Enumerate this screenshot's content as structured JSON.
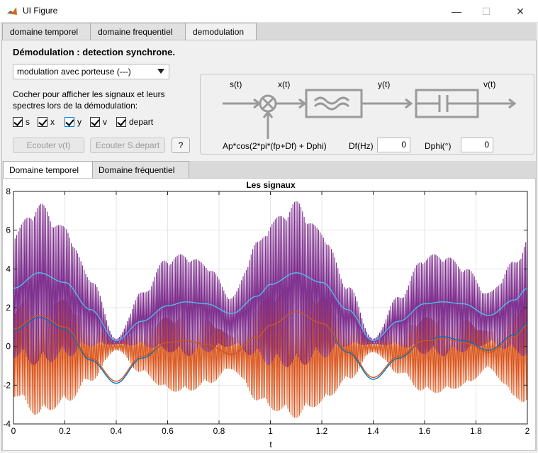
{
  "window": {
    "title": "UI Figure",
    "minimize": "—",
    "maximize": "☐",
    "close": "✕"
  },
  "tabs": [
    {
      "label": "domaine temporel"
    },
    {
      "label": "domaine frequentiel"
    },
    {
      "label": "demodulation",
      "active": true
    }
  ],
  "demod": {
    "heading": "Démodulation : detection synchrone.",
    "dropdown_value": "modulation avec porteuse (---)",
    "help_text": "Cocher pour afficher les signaux et leurs spectres lors de la démodulation:",
    "checkboxes": [
      {
        "label": "s",
        "checked": true
      },
      {
        "label": "x",
        "checked": true
      },
      {
        "label": "y",
        "checked": true
      },
      {
        "label": "v",
        "checked": true
      },
      {
        "label": "depart",
        "checked": true
      }
    ],
    "buttons": {
      "listen_v": "Ecouter v(t)",
      "listen_s": "Ecouter S.depart",
      "help": "?"
    }
  },
  "diagram": {
    "s": "s(t)",
    "x": "x(t)",
    "y": "y(t)",
    "v": "v(t)",
    "carrier": "Ap*cos(2*pi*(fp+Df) + Dphi)",
    "df_label": "Df(Hz)",
    "df_value": "0",
    "dphi_label": "Dphi(°)",
    "dphi_value": "0"
  },
  "subtabs": [
    {
      "label": "Domaine temporel",
      "active": true
    },
    {
      "label": "Domaine fréquentiel"
    }
  ],
  "colors": {
    "purple": "#7E2F8E",
    "orange": "#D95319",
    "cyan": "#4DBEEE",
    "blue": "#0072BD",
    "black": "#000000"
  },
  "chart_data": {
    "type": "line",
    "title": "Les signaux",
    "xlabel": "t",
    "ylabel": "",
    "xlim": [
      0,
      2
    ],
    "ylim": [
      -4,
      8
    ],
    "xticks": [
      "0",
      "0.2",
      "0.4",
      "0.6",
      "0.8",
      "1",
      "1.2",
      "1.4",
      "1.6",
      "1.8",
      "2"
    ],
    "yticks": [
      "-4",
      "-2",
      "0",
      "2",
      "4",
      "6",
      "8"
    ],
    "grid": true,
    "envelope": {
      "x": [
        0,
        0.1,
        0.2,
        0.3,
        0.4,
        0.5,
        0.6,
        0.67,
        0.75,
        0.85,
        0.95,
        1.0,
        1.1,
        1.2,
        1.3,
        1.4,
        1.5,
        1.6,
        1.67,
        1.75,
        1.85,
        1.95,
        2.0
      ],
      "upper": [
        6.0,
        7.4,
        6.2,
        3.6,
        0.4,
        2.8,
        4.6,
        4.8,
        4.3,
        2.6,
        5.4,
        6.5,
        7.5,
        6.0,
        3.2,
        0.4,
        2.6,
        4.7,
        4.8,
        4.2,
        2.8,
        4.4,
        5.6
      ],
      "lower": [
        -0.6,
        -1.0,
        -0.6,
        0.0,
        0.1,
        0.0,
        -0.3,
        -0.5,
        -0.3,
        0.0,
        -0.6,
        -1.0,
        -1.1,
        -0.6,
        0.0,
        0.1,
        0.0,
        -0.4,
        -0.5,
        -0.3,
        0.1,
        -0.3,
        -0.6
      ]
    },
    "orange_env": {
      "x": [
        0,
        0.1,
        0.2,
        0.3,
        0.4,
        0.5,
        0.6,
        0.67,
        0.75,
        0.85,
        0.95,
        1.0,
        1.1,
        1.2,
        1.3,
        1.4,
        1.5,
        1.6,
        1.67,
        1.75,
        1.85,
        1.95,
        2.0
      ],
      "upper": [
        2.0,
        3.0,
        2.4,
        1.2,
        0.2,
        0.9,
        1.5,
        1.6,
        1.4,
        0.6,
        2.2,
        2.8,
        3.2,
        2.6,
        1.3,
        0.2,
        0.9,
        1.5,
        1.6,
        1.4,
        0.8,
        1.9,
        2.4
      ],
      "lower": [
        -2.6,
        -3.6,
        -3.0,
        -1.8,
        -0.2,
        -1.4,
        -2.3,
        -2.4,
        -2.0,
        -1.2,
        -2.8,
        -3.3,
        -3.7,
        -3.0,
        -1.8,
        -0.3,
        -1.4,
        -2.4,
        -2.4,
        -2.1,
        -1.2,
        -2.6,
        -3.2
      ]
    },
    "series": [
      {
        "name": "s",
        "color": "#4DBEEE",
        "x": [
          0,
          0.1,
          0.2,
          0.3,
          0.4,
          0.5,
          0.6,
          0.67,
          0.75,
          0.85,
          0.95,
          1.0,
          1.1,
          1.2,
          1.3,
          1.4,
          1.5,
          1.6,
          1.67,
          1.75,
          1.85,
          1.95,
          2.0
        ],
        "y": [
          3.0,
          3.8,
          3.3,
          1.9,
          0.3,
          1.3,
          2.1,
          2.3,
          2.2,
          1.7,
          2.6,
          3.2,
          3.8,
          3.3,
          1.9,
          0.3,
          1.3,
          2.2,
          2.3,
          2.2,
          1.6,
          2.4,
          3.0
        ]
      },
      {
        "name": "v",
        "color": "#0072BD",
        "x": [
          0,
          0.1,
          0.2,
          0.3,
          0.4,
          0.5,
          0.6,
          0.67,
          0.75,
          0.85,
          0.95,
          1.0,
          1.1,
          1.2,
          1.3,
          1.4,
          1.5,
          1.6,
          1.67,
          1.75,
          1.85,
          1.95,
          2.0
        ],
        "y": [
          0.8,
          1.5,
          0.9,
          -0.7,
          -1.9,
          -0.6,
          0.2,
          0.3,
          0.1,
          -0.4,
          0.5,
          1.1,
          1.8,
          1.2,
          -0.3,
          -1.7,
          -0.6,
          0.3,
          0.5,
          0.3,
          -0.2,
          0.6,
          1.2
        ]
      },
      {
        "name": "depart",
        "color": "#D95319",
        "x": [
          0,
          0.1,
          0.2,
          0.3,
          0.4,
          0.5,
          0.6,
          0.67,
          0.75,
          0.85,
          0.95,
          1.0,
          1.1,
          1.2,
          1.3,
          1.4,
          1.5,
          1.6,
          1.67,
          1.75,
          1.85,
          1.95,
          2.0
        ],
        "y": [
          0.9,
          1.6,
          1.0,
          -0.6,
          -1.8,
          -0.5,
          0.2,
          0.3,
          0.1,
          -0.4,
          0.5,
          1.1,
          1.8,
          1.2,
          -0.2,
          -1.6,
          -0.5,
          0.3,
          0.4,
          0.2,
          -0.3,
          0.5,
          1.1
        ]
      }
    ]
  }
}
